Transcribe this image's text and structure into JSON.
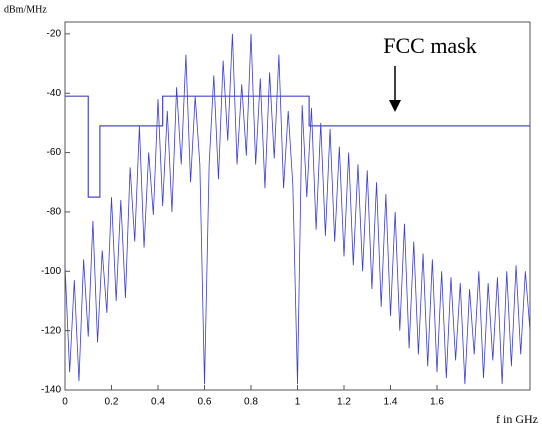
{
  "chart_data": {
    "type": "line",
    "y_label": "dBm/MHz",
    "x_label": "f in GHz",
    "annotation": "FCC mask",
    "xlim": [
      0,
      2
    ],
    "ylim": [
      -140,
      -16
    ],
    "xticks": [
      0,
      0.2,
      0.4,
      0.6,
      0.8,
      1,
      1.2,
      1.4,
      1.6
    ],
    "yticks": [
      -140,
      -120,
      -100,
      -80,
      -60,
      -40,
      -20
    ],
    "series": [
      {
        "color": "#3b3bd6",
        "x": [
          0,
          0.02,
          0.04,
          0.06,
          0.08,
          0.1,
          0.12,
          0.14,
          0.16,
          0.18,
          0.2,
          0.22,
          0.24,
          0.26,
          0.28,
          0.3,
          0.32,
          0.34,
          0.36,
          0.38,
          0.4,
          0.42,
          0.44,
          0.46,
          0.48,
          0.5,
          0.52,
          0.54,
          0.56,
          0.58,
          0.6,
          0.62,
          0.64,
          0.66,
          0.68,
          0.7,
          0.72,
          0.74,
          0.76,
          0.78,
          0.8,
          0.82,
          0.84,
          0.86,
          0.88,
          0.9,
          0.92,
          0.94,
          0.96,
          0.98,
          1,
          1.02,
          1.04,
          1.06,
          1.08,
          1.1,
          1.12,
          1.14,
          1.16,
          1.18,
          1.2,
          1.22,
          1.24,
          1.26,
          1.28,
          1.3,
          1.32,
          1.34,
          1.36,
          1.38,
          1.4,
          1.42,
          1.44,
          1.46,
          1.48,
          1.5,
          1.52,
          1.54,
          1.56,
          1.58,
          1.6,
          1.62,
          1.64,
          1.66,
          1.68,
          1.7,
          1.72,
          1.74,
          1.76,
          1.78,
          1.8,
          1.82,
          1.84,
          1.86,
          1.88,
          1.9,
          1.92,
          1.94,
          1.96,
          1.98,
          2
        ],
        "values": [
          -98,
          -134,
          -103,
          -137,
          -96,
          -122,
          -83,
          -124,
          -93,
          -114,
          -75,
          -110,
          -76,
          -109,
          -65,
          -90,
          -51,
          -92,
          -60,
          -81,
          -42,
          -78,
          -46,
          -80,
          -38,
          -64,
          -27,
          -70,
          -41,
          -64,
          -138,
          -64,
          -34,
          -69,
          -29,
          -56,
          -20,
          -64,
          -37,
          -61,
          -20,
          -64,
          -35,
          -72,
          -33,
          -62,
          -27,
          -72,
          -46,
          -71,
          -138,
          -44,
          -75,
          -45,
          -86,
          -50,
          -88,
          -52,
          -90,
          -58,
          -95,
          -60,
          -98,
          -64,
          -100,
          -66,
          -106,
          -70,
          -112,
          -74,
          -115,
          -80,
          -120,
          -84,
          -126,
          -90,
          -128,
          -94,
          -132,
          -96,
          -134,
          -100,
          -136,
          -102,
          -130,
          -104,
          -138,
          -106,
          -128,
          -100,
          -136,
          -104,
          -130,
          -102,
          -138,
          -100,
          -132,
          -98,
          -128,
          -100,
          -120
        ]
      },
      {
        "color": "#4848c8",
        "x": [
          0,
          0.1,
          0.1,
          0.15,
          0.15,
          0.42,
          0.42,
          1.05,
          1.05,
          2
        ],
        "values": [
          -41,
          -41,
          -75,
          -75,
          -51,
          -51,
          -41,
          -41,
          -51,
          -51
        ]
      }
    ]
  }
}
